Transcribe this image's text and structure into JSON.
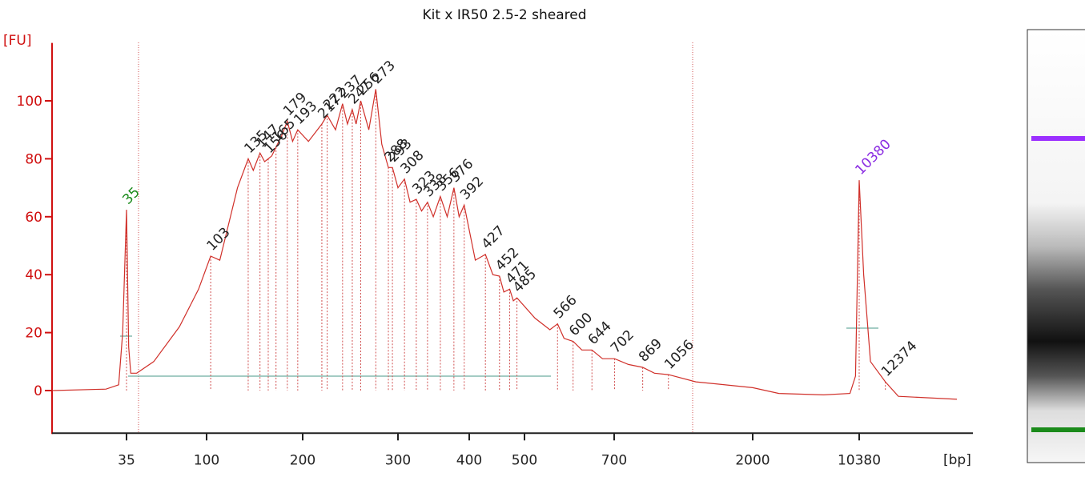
{
  "chart_data": {
    "type": "electropherogram",
    "title": "Kit x IR50 2.5-2 sheared",
    "y_label": "[FU]",
    "x_label": "[bp]",
    "color": "#d0302a",
    "axis_color": "#d01010",
    "xlim": [
      20,
      20000
    ],
    "xticks": [
      35,
      100,
      200,
      300,
      400,
      500,
      700,
      2000,
      10380
    ],
    "ylim": [
      -15,
      120
    ],
    "yticks": [
      0,
      20,
      40,
      60,
      80,
      100
    ],
    "x": [
      20,
      30,
      33,
      34,
      35,
      36,
      37,
      40,
      50,
      70,
      90,
      103,
      110,
      125,
      135,
      140,
      147,
      152,
      156,
      160,
      165,
      172,
      179,
      186,
      193,
      205,
      217,
      222,
      230,
      237,
      242,
      247,
      251,
      256,
      265,
      273,
      280,
      288,
      293,
      300,
      308,
      315,
      323,
      330,
      338,
      346,
      356,
      366,
      376,
      384,
      392,
      410,
      427,
      440,
      452,
      460,
      471,
      478,
      485,
      520,
      550,
      566,
      580,
      600,
      620,
      644,
      670,
      702,
      780,
      869,
      950,
      1056,
      1300,
      2000,
      3000,
      6000,
      9000,
      9800,
      10100,
      10380,
      10700,
      11200,
      12374,
      13500,
      20000
    ],
    "values": [
      0,
      0.5,
      2,
      20,
      62.4,
      15,
      6,
      6,
      10,
      22,
      35,
      46.4,
      45,
      70,
      80,
      76,
      82,
      79,
      80,
      81,
      84,
      88,
      93,
      86,
      90,
      86,
      92,
      95,
      90,
      99,
      92,
      97,
      92,
      100,
      90,
      104,
      85,
      77,
      77,
      70,
      73,
      65,
      66,
      62,
      65,
      60,
      67,
      60,
      70,
      60,
      64,
      45,
      47,
      40,
      39.5,
      34,
      35,
      31,
      32,
      25,
      21,
      23,
      18,
      17,
      14,
      14,
      11,
      11,
      9,
      8,
      6,
      5.5,
      3,
      1,
      -1,
      -1.5,
      -1,
      5,
      40,
      72.6,
      40,
      10,
      3,
      -2,
      -3
    ],
    "peaks": {
      "sizes": [
        35,
        103,
        135,
        147,
        156,
        165,
        179,
        193,
        217,
        222,
        237,
        247,
        256,
        273,
        288,
        293,
        308,
        323,
        338,
        356,
        376,
        392,
        427,
        452,
        471,
        485,
        566,
        600,
        644,
        702,
        869,
        1056,
        10380,
        12374
      ],
      "heights": [
        62.4,
        46.4,
        80,
        82,
        80,
        84,
        93,
        90,
        92,
        95,
        99,
        97,
        100,
        104,
        77,
        77,
        73,
        66,
        65,
        67,
        70,
        64,
        47,
        39.5,
        35,
        32,
        23,
        17,
        14,
        11,
        8,
        5.5,
        72.6,
        3
      ],
      "colors": [
        "#1a8a1a",
        "#222",
        "#222",
        "#222",
        "#222",
        "#222",
        "#222",
        "#222",
        "#222",
        "#222",
        "#222",
        "#222",
        "#222",
        "#222",
        "#222",
        "#222",
        "#222",
        "#222",
        "#222",
        "#222",
        "#222",
        "#222",
        "#222",
        "#222",
        "#222",
        "#222",
        "#222",
        "#222",
        "#222",
        "#222",
        "#222",
        "#222",
        "#8a2be2",
        "#222"
      ]
    }
  }
}
